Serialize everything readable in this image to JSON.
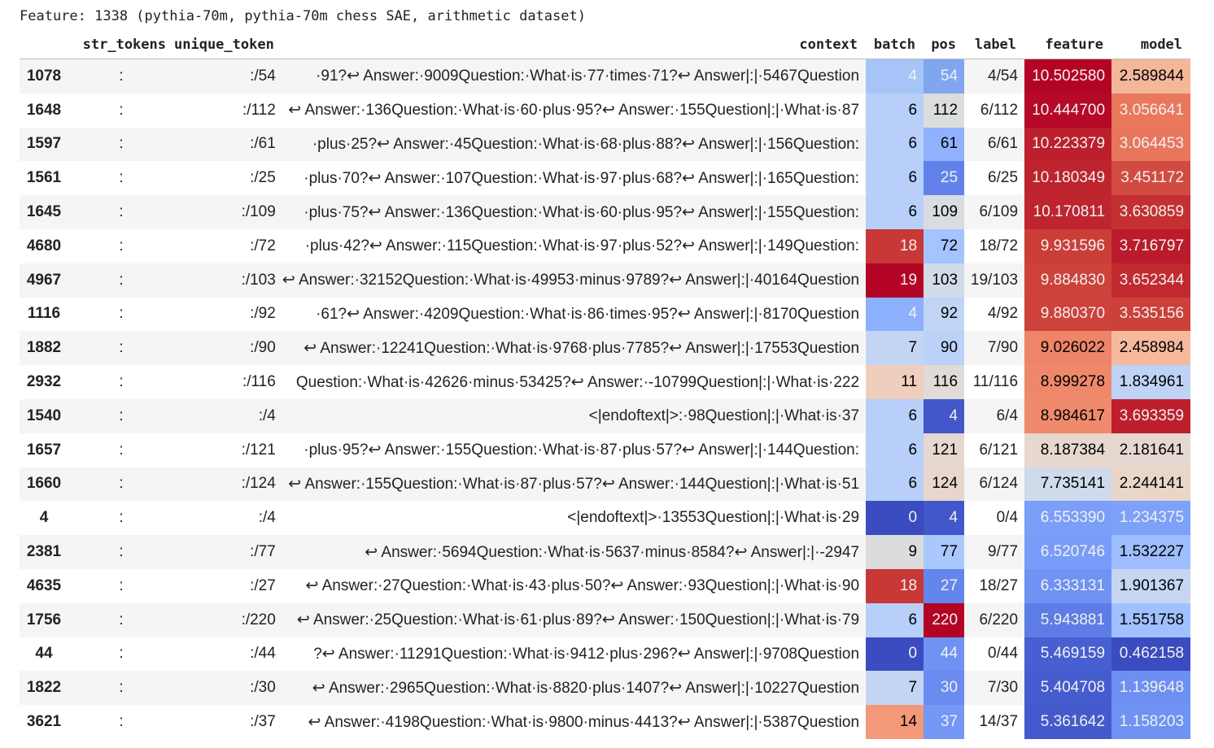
{
  "caption": "Feature: 1338 (pythia-70m, pythia-70m chess SAE, arithmetic dataset)",
  "columns": [
    "",
    "str_tokens",
    "unique_token",
    "context",
    "batch",
    "pos",
    "label",
    "feature",
    "model"
  ],
  "rows": [
    {
      "idx": "1078",
      "tok": ":",
      "uniq": ":/54",
      "ctx": "·91?↩ Answer:·9009Question:·What·is·77·times·71?↩ Answer|:|·5467Question",
      "batch": "4",
      "pos": "54",
      "label": "4/54",
      "feature": "10.502580",
      "model": "2.589844",
      "bc": "#a6c4f7",
      "pc": "#7fa6ef",
      "fc": "#b40426",
      "fw": true,
      "mc": "#f5b79a",
      "mw": false,
      "bw": true,
      "pw": true
    },
    {
      "idx": "1648",
      "tok": ":",
      "uniq": ":/112",
      "ctx": "↩ Answer:·136Question:·What·is·60·plus·95?↩ Answer:·155Question|:|·What·is·87",
      "batch": "6",
      "pos": "112",
      "label": "6/112",
      "feature": "10.444700",
      "model": "3.056641",
      "bc": "#b7cff9",
      "pc": "#dcdddd",
      "fc": "#b50927",
      "fw": true,
      "mc": "#e9785d",
      "mw": true,
      "bw": false,
      "pw": false
    },
    {
      "idx": "1597",
      "tok": ":",
      "uniq": ":/61",
      "ctx": "·plus·25?↩ Answer:·45Question:·What·is·68·plus·88?↩ Answer|:|·156Question:",
      "batch": "6",
      "pos": "61",
      "label": "6/61",
      "feature": "10.223379",
      "model": "3.064453",
      "bc": "#b7cff9",
      "pc": "#90b2fe",
      "fc": "#bd1f2d",
      "fw": true,
      "mc": "#e8765c",
      "mw": true,
      "bw": false,
      "pw": false
    },
    {
      "idx": "1561",
      "tok": ":",
      "uniq": ":/25",
      "ctx": "·plus·70?↩ Answer:·107Question:·What·is·97·plus·68?↩ Answer|:|·165Question:",
      "batch": "6",
      "pos": "25",
      "label": "6/25",
      "feature": "10.180349",
      "model": "3.451172",
      "bc": "#b7cff9",
      "pc": "#6282ea",
      "fc": "#be242e",
      "fw": true,
      "mc": "#d24b40",
      "mw": true,
      "bw": false,
      "pw": true
    },
    {
      "idx": "1645",
      "tok": ":",
      "uniq": ":/109",
      "ctx": "·plus·75?↩ Answer:·136Question:·What·is·60·plus·95?↩ Answer|:|·155Question:",
      "batch": "6",
      "pos": "109",
      "label": "6/109",
      "feature": "10.170811",
      "model": "3.630859",
      "bc": "#b7cff9",
      "pc": "#d9dce1",
      "fc": "#bf252f",
      "fw": true,
      "mc": "#c43032",
      "mw": true,
      "bw": false,
      "pw": false
    },
    {
      "idx": "4680",
      "tok": ":",
      "uniq": ":/72",
      "ctx": "·plus·42?↩ Answer:·115Question:·What·is·97·plus·52?↩ Answer|:|·149Question:",
      "batch": "18",
      "pos": "72",
      "label": "18/72",
      "feature": "9.931596",
      "model": "3.716797",
      "bc": "#c83836",
      "pc": "#a5c3fe",
      "fc": "#cb3e38",
      "fw": true,
      "mc": "#bb1b2c",
      "mw": true,
      "bw": true,
      "pw": false
    },
    {
      "idx": "4967",
      "tok": ":",
      "uniq": ":/103",
      "ctx": "↩ Answer:·32152Question:·What·is·49953·minus·9789?↩ Answer|:|·40164Question",
      "batch": "19",
      "pos": "103",
      "label": "19/103",
      "feature": "9.884830",
      "model": "3.652344",
      "bc": "#b40426",
      "pc": "#d2dbe8",
      "fc": "#cd423b",
      "fw": true,
      "mc": "#c12b30",
      "mw": true,
      "bw": true,
      "pw": false
    },
    {
      "idx": "1116",
      "tok": ":",
      "uniq": ":/92",
      "ctx": "·61?↩ Answer:·4209Question:·What·is·86·times·95?↩ Answer|:|·8170Question",
      "batch": "4",
      "pos": "92",
      "label": "4/92",
      "feature": "9.880370",
      "model": "3.535156",
      "bc": "#8caffe",
      "pc": "#c0d4f5",
      "fc": "#cd423b",
      "fw": true,
      "mc": "#cc403a",
      "mw": true,
      "bw": true,
      "pw": false
    },
    {
      "idx": "1882",
      "tok": ":",
      "uniq": ":/90",
      "ctx": "↩ Answer:·12241Question:·What·is·9768·plus·7785?↩ Answer|:|·17553Question",
      "batch": "7",
      "pos": "90",
      "label": "7/90",
      "feature": "9.026022",
      "model": "2.458984",
      "bc": "#c4d5f3",
      "pc": "#bbd1f8",
      "fc": "#ee8468",
      "fw": false,
      "mc": "#f7b99e",
      "mw": false,
      "bw": false,
      "pw": false
    },
    {
      "idx": "2932",
      "tok": ":",
      "uniq": ":/116",
      "ctx": "Question:·What·is·42626·minus·53425?↩ Answer:·-10799Question|:|·What·is·222",
      "batch": "11",
      "pos": "116",
      "label": "11/116",
      "feature": "8.999278",
      "model": "1.834961",
      "bc": "#efcebd",
      "pc": "#e0dbd8",
      "fc": "#ef886b",
      "fw": false,
      "mc": "#bfd3f6",
      "mw": false,
      "bw": false,
      "pw": false
    },
    {
      "idx": "1540",
      "tok": ":",
      "uniq": ":/4",
      "ctx": "<|endoftext|>:·98Question|:|·What·is·37",
      "batch": "6",
      "pos": "4",
      "label": "6/4",
      "feature": "8.984617",
      "model": "3.693359",
      "bc": "#b7cff9",
      "pc": "#4257c9",
      "fc": "#f08a6c",
      "fw": false,
      "mc": "#bd1f2d",
      "mw": true,
      "bw": false,
      "pw": true
    },
    {
      "idx": "1657",
      "tok": ":",
      "uniq": ":/121",
      "ctx": "·plus·95?↩ Answer:·155Question:·What·is·87·plus·57?↩ Answer|:|·144Question:",
      "batch": "6",
      "pos": "121",
      "label": "6/121",
      "feature": "8.187384",
      "model": "2.181641",
      "bc": "#b7cff9",
      "pc": "#e6d7cf",
      "fc": "#e6d7cf",
      "fw": false,
      "mc": "#e5d8d1",
      "mw": false,
      "bw": false,
      "pw": false
    },
    {
      "idx": "1660",
      "tok": ":",
      "uniq": ":/124",
      "ctx": "↩ Answer:·155Question:·What·is·87·plus·57?↩ Answer:·144Question|:|·What·is·51",
      "batch": "6",
      "pos": "124",
      "label": "6/124",
      "feature": "7.735141",
      "model": "2.244141",
      "bc": "#b7cff9",
      "pc": "#e8d6cc",
      "fc": "#cfdaea",
      "fw": false,
      "mc": "#ead5c9",
      "mw": false,
      "bw": false,
      "pw": false
    },
    {
      "idx": "4",
      "tok": ":",
      "uniq": ":/4",
      "ctx": "<|endoftext|>·13553Question|:|·What·is·29",
      "batch": "0",
      "pos": "4",
      "label": "0/4",
      "feature": "6.553390",
      "model": "1.234375",
      "bc": "#3b4cc0",
      "pc": "#4257c9",
      "fc": "#7b9ff9",
      "fw": true,
      "mc": "#7da0f9",
      "mw": true,
      "bw": true,
      "pw": true
    },
    {
      "idx": "2381",
      "tok": ":",
      "uniq": ":/77",
      "ctx": "↩ Answer:·5694Question:·What·is·5637·minus·8584?↩ Answer|:|·-2947",
      "batch": "9",
      "pos": "77",
      "label": "9/77",
      "feature": "6.520746",
      "model": "1.532227",
      "bc": "#dbdcde",
      "pc": "#abc8fd",
      "fc": "#799cf8",
      "fw": true,
      "mc": "#9ebeff",
      "mw": false,
      "bw": false,
      "pw": false
    },
    {
      "idx": "4635",
      "tok": ":",
      "uniq": ":/27",
      "ctx": "↩ Answer:·27Question:·What·is·43·plus·50?↩ Answer:·93Question|:|·What·is·90",
      "batch": "18",
      "pos": "27",
      "label": "18/27",
      "feature": "6.333131",
      "model": "1.901367",
      "bc": "#c83836",
      "pc": "#6485ec",
      "fc": "#6f92f3",
      "fw": true,
      "mc": "#c6d6f1",
      "mw": false,
      "bw": true,
      "pw": true
    },
    {
      "idx": "1756",
      "tok": ":",
      "uniq": ":/220",
      "ctx": "↩ Answer:·25Question:·What·is·61·plus·89?↩ Answer:·150Question|:|·What·is·79",
      "batch": "6",
      "pos": "220",
      "label": "6/220",
      "feature": "5.943881",
      "model": "1.551758",
      "bc": "#b7cff9",
      "pc": "#b40426",
      "fc": "#5d7ce6",
      "fw": true,
      "mc": "#a1c0ff",
      "mw": false,
      "bw": false,
      "pw": true
    },
    {
      "idx": "44",
      "tok": ":",
      "uniq": ":/44",
      "ctx": "?↩ Answer:·11291Question:·What·is·9412·plus·296?↩ Answer|:|·9708Question",
      "batch": "0",
      "pos": "44",
      "label": "0/44",
      "feature": "5.469159",
      "model": "0.462158",
      "bc": "#3b4cc0",
      "pc": "#6f92f3",
      "fc": "#485fd1",
      "fw": true,
      "mc": "#3b4cc0",
      "mw": true,
      "bw": true,
      "pw": true
    },
    {
      "idx": "1822",
      "tok": ":",
      "uniq": ":/30",
      "ctx": "↩ Answer:·2965Question:·What·is·8820·plus·1407?↩ Answer|:|·10227Question",
      "batch": "7",
      "pos": "30",
      "label": "7/30",
      "feature": "5.404708",
      "model": "1.139648",
      "bc": "#c4d5f3",
      "pc": "#6a8bef",
      "fc": "#455cce",
      "fw": true,
      "mc": "#6c8ff1",
      "mw": true,
      "bw": false,
      "pw": true
    },
    {
      "idx": "3621",
      "tok": ":",
      "uniq": ":/37",
      "ctx": "↩ Answer:·4198Question:·What·is·9800·minus·4413?↩ Answer|:|·5387Question",
      "batch": "14",
      "pos": "37",
      "label": "14/37",
      "feature": "5.361642",
      "model": "1.158203",
      "bc": "#f4987a",
      "pc": "#7597f6",
      "fc": "#445acc",
      "fw": true,
      "mc": "#6f92f3",
      "mw": true,
      "bw": false,
      "pw": true
    }
  ]
}
